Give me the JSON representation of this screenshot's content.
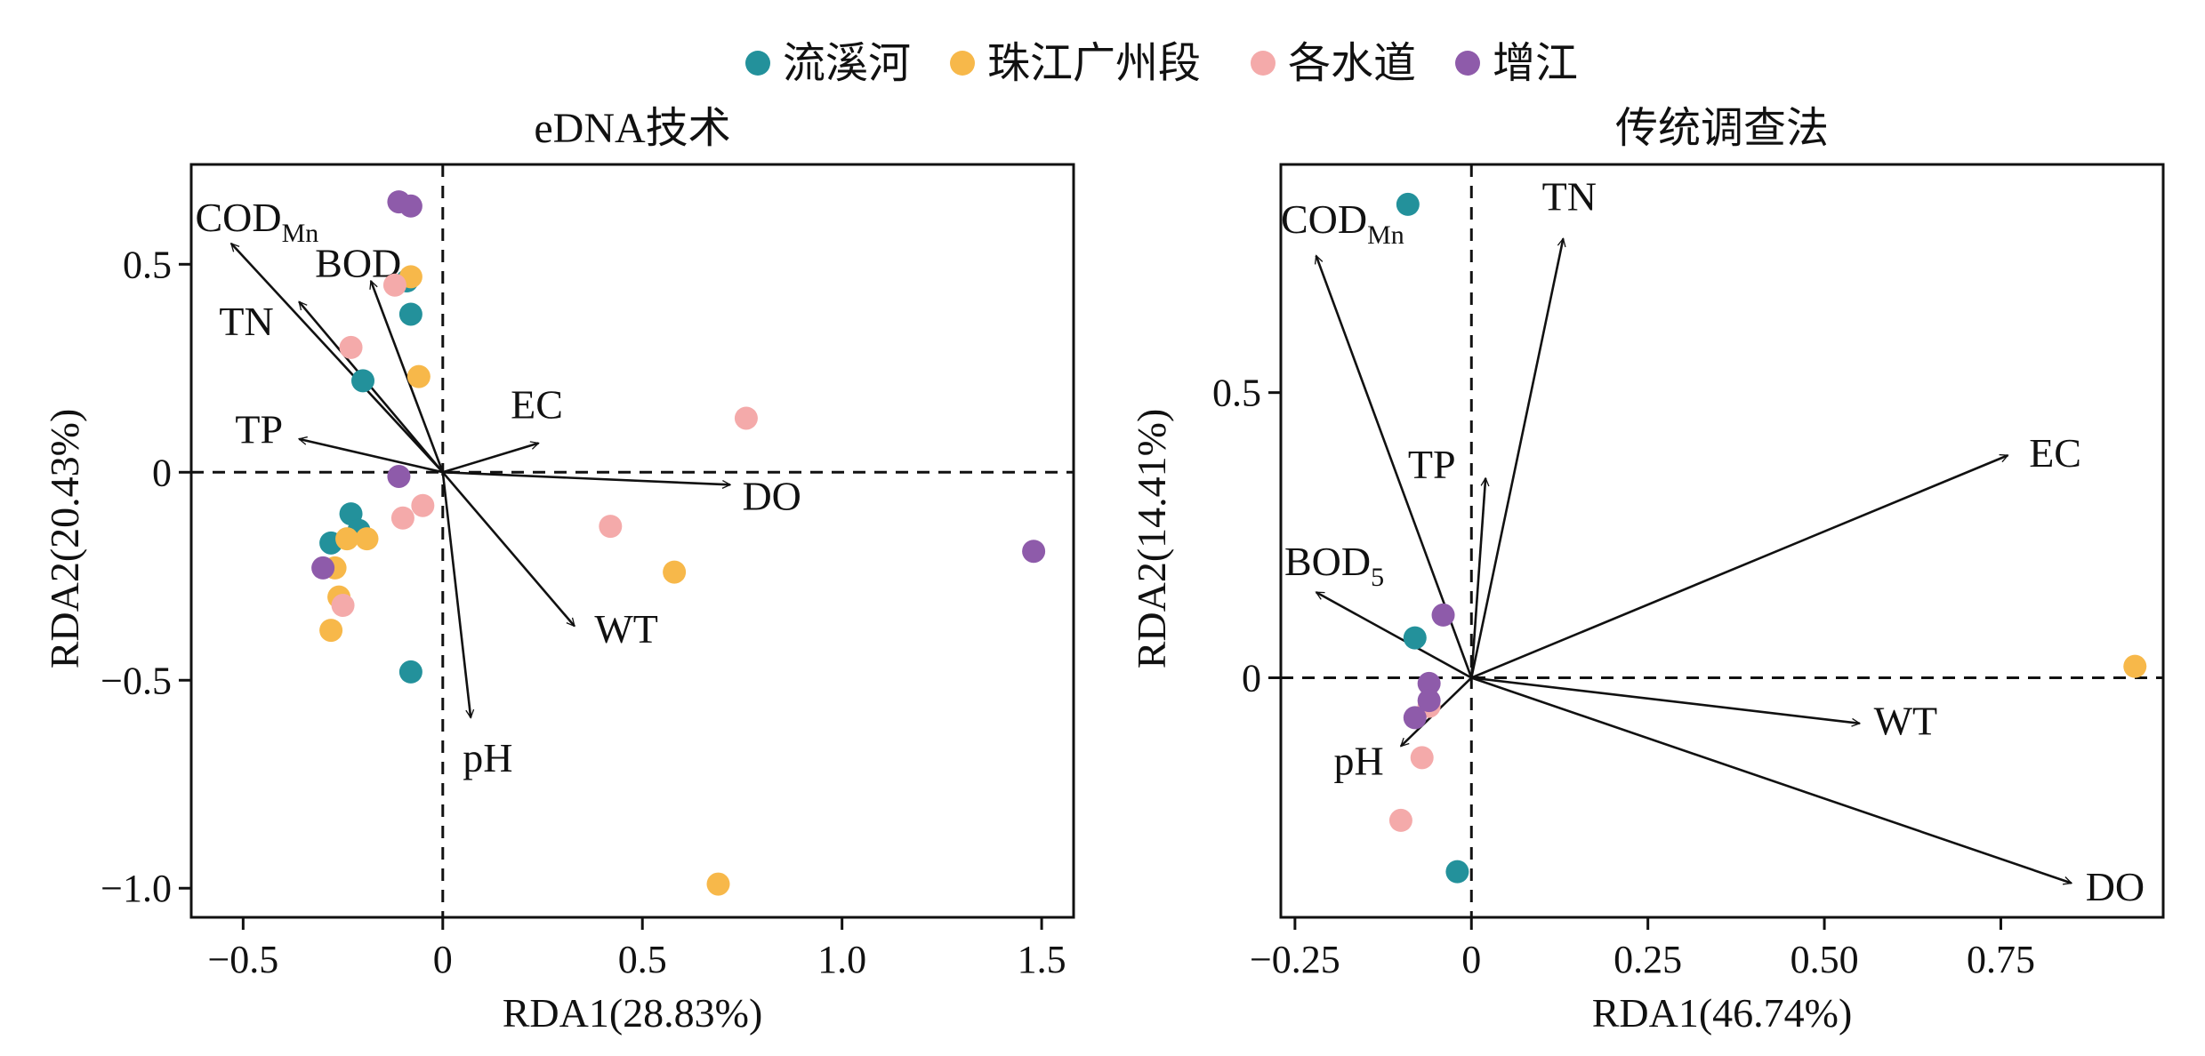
{
  "legend": [
    {
      "name": "流溪河",
      "color": "#23919B"
    },
    {
      "name": "珠江广州段",
      "color": "#F7B84A"
    },
    {
      "name": "各水道",
      "color": "#F4AAAA"
    },
    {
      "name": "增江",
      "color": "#8E5BAA"
    }
  ],
  "chart_data": [
    {
      "type": "scatter",
      "title": "eDNA技术",
      "xlabel": "RDA1(28.83%)",
      "ylabel": "RDA2(20.43%)",
      "xlim": [
        -0.63,
        1.58
      ],
      "ylim": [
        -1.07,
        0.74
      ],
      "xticks": [
        -0.5,
        0,
        0.5,
        1.0,
        1.5
      ],
      "xtick_labels": [
        "−0.5",
        "0",
        "0.5",
        "1.0",
        "1.5"
      ],
      "yticks": [
        0.5,
        0,
        -0.5,
        -1.0
      ],
      "ytick_labels": [
        "0.5",
        "0",
        "−0.5",
        "−1.0"
      ],
      "grid": false,
      "vectors": [
        {
          "name": "COD",
          "sub": "Mn",
          "x": -0.53,
          "y": 0.55,
          "label_x": -0.62,
          "label_y": 0.58
        },
        {
          "name": "BOD",
          "sub": "5",
          "x": -0.18,
          "y": 0.46,
          "label_x": -0.32,
          "label_y": 0.47
        },
        {
          "name": "TN",
          "sub": "",
          "x": -0.36,
          "y": 0.41,
          "label_x": -0.56,
          "label_y": 0.33
        },
        {
          "name": "TP",
          "sub": "",
          "x": -0.36,
          "y": 0.08,
          "label_x": -0.52,
          "label_y": 0.07
        },
        {
          "name": "EC",
          "sub": "",
          "x": 0.24,
          "y": 0.07,
          "label_x": 0.17,
          "label_y": 0.13
        },
        {
          "name": "DO",
          "sub": "",
          "x": 0.72,
          "y": -0.03,
          "label_x": 0.75,
          "label_y": -0.09
        },
        {
          "name": "WT",
          "sub": "",
          "x": 0.33,
          "y": -0.37,
          "label_x": 0.38,
          "label_y": -0.41
        },
        {
          "name": "pH",
          "sub": "",
          "x": 0.07,
          "y": -0.59,
          "label_x": 0.05,
          "label_y": -0.72
        }
      ],
      "series": [
        {
          "name": "流溪河",
          "color": "#23919B",
          "points": [
            [
              -0.08,
              0.38
            ],
            [
              -0.2,
              0.22
            ],
            [
              -0.23,
              -0.1
            ],
            [
              -0.21,
              -0.14
            ],
            [
              -0.28,
              -0.17
            ],
            [
              -0.08,
              -0.48
            ],
            [
              -0.09,
              0.46
            ]
          ]
        },
        {
          "name": "珠江广州段",
          "color": "#F7B84A",
          "points": [
            [
              -0.06,
              0.23
            ],
            [
              -0.08,
              0.47
            ],
            [
              -0.24,
              -0.16
            ],
            [
              -0.19,
              -0.16
            ],
            [
              -0.27,
              -0.23
            ],
            [
              -0.26,
              -0.3
            ],
            [
              -0.28,
              -0.38
            ],
            [
              0.58,
              -0.24
            ],
            [
              0.69,
              -0.99
            ]
          ]
        },
        {
          "name": "各水道",
          "color": "#F4AAAA",
          "points": [
            [
              -0.12,
              0.45
            ],
            [
              -0.23,
              0.3
            ],
            [
              0.76,
              0.13
            ],
            [
              -0.05,
              -0.08
            ],
            [
              -0.1,
              -0.11
            ],
            [
              0.42,
              -0.13
            ],
            [
              -0.25,
              -0.32
            ]
          ]
        },
        {
          "name": "增江",
          "color": "#8E5BAA",
          "points": [
            [
              -0.11,
              0.65
            ],
            [
              -0.08,
              0.64
            ],
            [
              -0.11,
              -0.01
            ],
            [
              -0.3,
              -0.23
            ],
            [
              1.48,
              -0.19
            ]
          ]
        }
      ]
    },
    {
      "type": "scatter",
      "title": "传统调查法",
      "xlabel": "RDA1(46.74%)",
      "ylabel": "RDA2(14.41%)",
      "xlim": [
        -0.27,
        0.98
      ],
      "ylim": [
        -0.42,
        0.9
      ],
      "xticks": [
        -0.25,
        0,
        0.25,
        0.5,
        0.75
      ],
      "xtick_labels": [
        "−0.25",
        "0",
        "0.25",
        "0.50",
        "0.75"
      ],
      "yticks": [
        0.5,
        0
      ],
      "ytick_labels": [
        "0.5",
        "0"
      ],
      "grid": false,
      "vectors": [
        {
          "name": "COD",
          "sub": "Mn",
          "x": -0.22,
          "y": 0.74,
          "label_x": -0.27,
          "label_y": 0.78
        },
        {
          "name": "TN",
          "sub": "",
          "x": 0.13,
          "y": 0.77,
          "label_x": 0.1,
          "label_y": 0.82
        },
        {
          "name": "TP",
          "sub": "",
          "x": 0.02,
          "y": 0.35,
          "label_x": -0.09,
          "label_y": 0.35
        },
        {
          "name": "EC",
          "sub": "",
          "x": 0.76,
          "y": 0.39,
          "label_x": 0.79,
          "label_y": 0.37
        },
        {
          "name": "BOD",
          "sub": "5",
          "x": -0.22,
          "y": 0.15,
          "label_x": -0.265,
          "label_y": 0.18
        },
        {
          "name": "WT",
          "sub": "",
          "x": 0.55,
          "y": -0.08,
          "label_x": 0.57,
          "label_y": -0.1
        },
        {
          "name": "DO",
          "sub": "",
          "x": 0.85,
          "y": -0.36,
          "label_x": 0.87,
          "label_y": -0.39
        },
        {
          "name": "pH",
          "sub": "",
          "x": -0.1,
          "y": -0.12,
          "label_x": -0.195,
          "label_y": -0.17
        }
      ],
      "series": [
        {
          "name": "流溪河",
          "color": "#23919B",
          "points": [
            [
              -0.09,
              0.83
            ],
            [
              -0.08,
              0.07
            ],
            [
              -0.02,
              -0.34
            ]
          ]
        },
        {
          "name": "珠江广州段",
          "color": "#F7B84A",
          "points": [
            [
              0.94,
              0.02
            ]
          ]
        },
        {
          "name": "各水道",
          "color": "#F4AAAA",
          "points": [
            [
              -0.06,
              -0.05
            ],
            [
              -0.07,
              -0.14
            ],
            [
              -0.1,
              -0.25
            ]
          ]
        },
        {
          "name": "增江",
          "color": "#8E5BAA",
          "points": [
            [
              -0.04,
              0.11
            ],
            [
              -0.06,
              -0.01
            ],
            [
              -0.06,
              -0.04
            ],
            [
              -0.08,
              -0.07
            ]
          ]
        }
      ]
    }
  ]
}
